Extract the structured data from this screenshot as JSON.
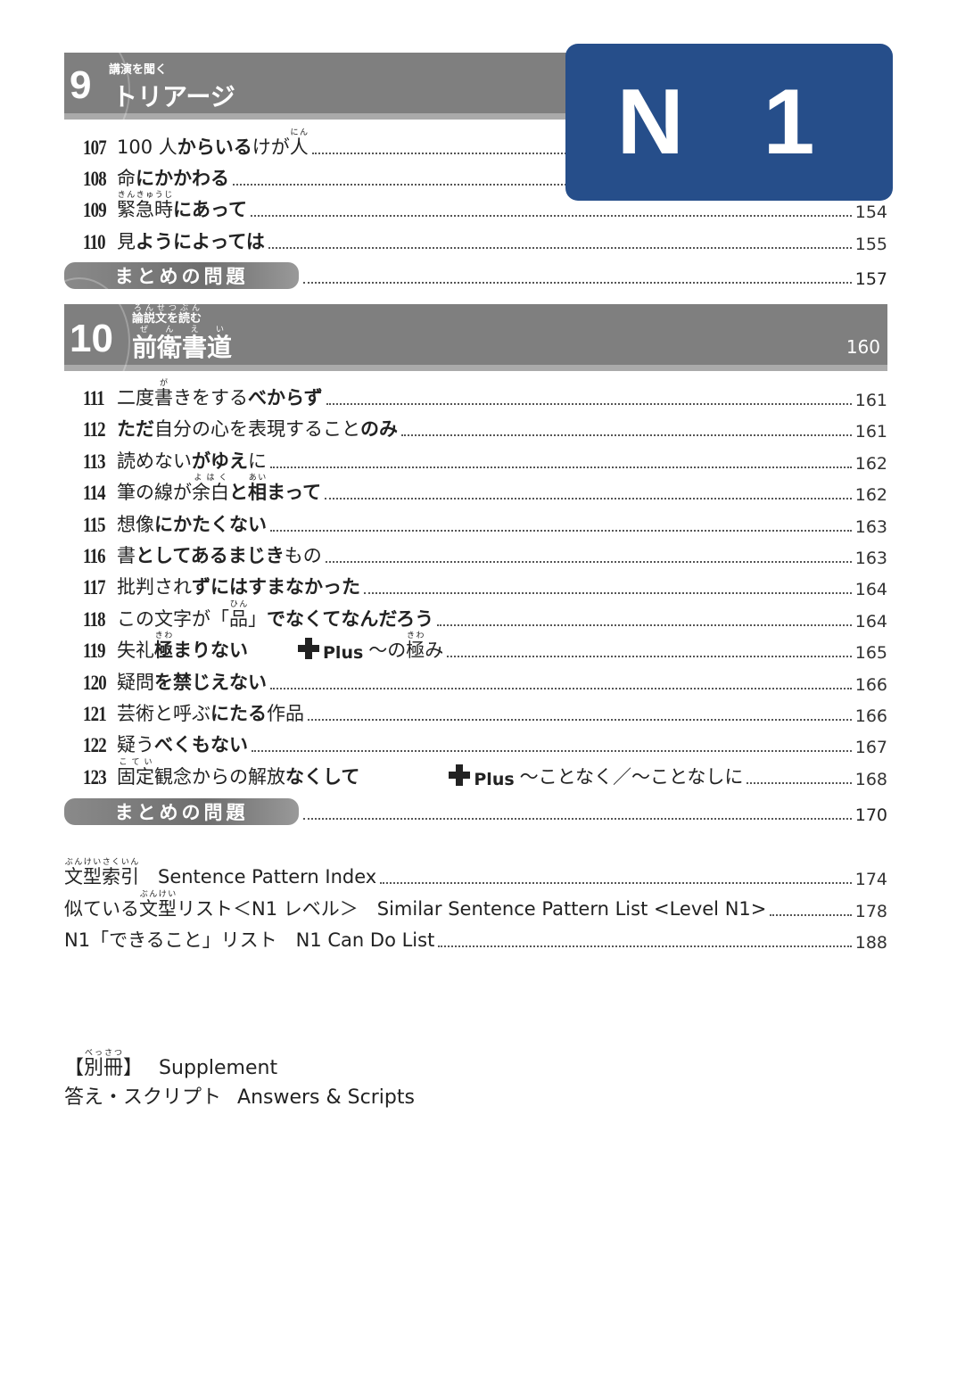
{
  "badge": {
    "label": "N 1",
    "color": "#264e8a"
  },
  "section9": {
    "number": "9",
    "subtitle": "講演を聞く",
    "title": "トリアージ",
    "items": [
      {
        "num": "107",
        "segs": [
          [
            "100 人",
            0
          ],
          [
            "からいる",
            1
          ],
          [
            "けが",
            0
          ],
          [
            "人",
            0,
            "にん"
          ]
        ],
        "page": ""
      },
      {
        "num": "108",
        "segs": [
          [
            "命",
            0
          ],
          [
            "にかかわる",
            1
          ]
        ],
        "page": ""
      },
      {
        "num": "109",
        "segs": [
          [
            "緊急時",
            0,
            "きんきゅうじ"
          ],
          [
            "にあって",
            1
          ]
        ],
        "page": "154"
      },
      {
        "num": "110",
        "segs": [
          [
            "見",
            0
          ],
          [
            "ようによっては",
            1
          ]
        ],
        "page": "155"
      }
    ],
    "summary": {
      "label": "まとめの問題",
      "page": "157"
    }
  },
  "section10": {
    "number": "10",
    "subtitle": "論説文を読む",
    "subtitle_ruby": "ろんせつぶん",
    "title": "前衛書道",
    "title_ruby": "ぜんえい",
    "page": "160",
    "items": [
      {
        "num": "111",
        "segs": [
          [
            "二度",
            0
          ],
          [
            "書",
            0,
            "が"
          ],
          [
            "きをする",
            0
          ],
          [
            "べからず",
            1
          ]
        ],
        "page": "161"
      },
      {
        "num": "112",
        "segs": [
          [
            "ただ",
            1
          ],
          [
            "自分の心を表現すること",
            0
          ],
          [
            "のみ",
            1
          ]
        ],
        "page": "161"
      },
      {
        "num": "113",
        "segs": [
          [
            "読めない",
            0
          ],
          [
            "がゆえ",
            1
          ],
          [
            "に",
            0
          ]
        ],
        "page": "162"
      },
      {
        "num": "114",
        "segs": [
          [
            "筆の線が",
            0
          ],
          [
            "余白",
            0,
            "よはく"
          ],
          [
            "と",
            1
          ],
          [
            "相",
            1,
            "あい"
          ],
          [
            "まって",
            1
          ]
        ],
        "page": "162"
      },
      {
        "num": "115",
        "segs": [
          [
            "想像",
            0
          ],
          [
            "にかたくない",
            1
          ]
        ],
        "page": "163"
      },
      {
        "num": "116",
        "segs": [
          [
            "書",
            0
          ],
          [
            "としてあるまじき",
            1
          ],
          [
            "もの",
            0
          ]
        ],
        "page": "163"
      },
      {
        "num": "117",
        "segs": [
          [
            "批判され",
            0
          ],
          [
            "ずにはすまなかった",
            1
          ]
        ],
        "page": "164"
      },
      {
        "num": "118",
        "segs": [
          [
            "この文字が「",
            0
          ],
          [
            "品",
            0,
            "ひん"
          ],
          [
            "」",
            0
          ],
          [
            "でなくてなんだろう",
            1
          ]
        ],
        "page": "164"
      },
      {
        "num": "119",
        "segs": [
          [
            "失礼",
            0
          ],
          [
            "極",
            1,
            "きわ"
          ],
          [
            "まりない",
            1
          ]
        ],
        "plus": {
          "label": "Plus",
          "segs": [
            [
              "～の",
              0
            ],
            [
              "極",
              0,
              "きわ"
            ],
            [
              "み",
              0
            ]
          ]
        },
        "page": "165"
      },
      {
        "num": "120",
        "segs": [
          [
            "疑問",
            0
          ],
          [
            "を禁じえない",
            1
          ]
        ],
        "page": "166"
      },
      {
        "num": "121",
        "segs": [
          [
            "芸術と呼ぶ",
            0
          ],
          [
            "にたる",
            1
          ],
          [
            "作品",
            0
          ]
        ],
        "page": "166"
      },
      {
        "num": "122",
        "segs": [
          [
            "疑う",
            0
          ],
          [
            "べくもない",
            1
          ]
        ],
        "page": "167"
      },
      {
        "num": "123",
        "segs": [
          [
            "固定",
            0,
            "こてい"
          ],
          [
            "観念からの解放",
            0
          ],
          [
            "なくして",
            1
          ]
        ],
        "plus": {
          "label": "Plus",
          "segs": [
            [
              "～ことなく／～ことなしに",
              0
            ]
          ]
        },
        "page": "168"
      }
    ],
    "summary": {
      "label": "まとめの問題",
      "page": "170"
    }
  },
  "index": [
    {
      "segs": [
        [
          "文型索引",
          0,
          "ぶんけいさくいん"
        ],
        [
          "　Sentence Pattern Index",
          0
        ]
      ],
      "page": "174"
    },
    {
      "segs": [
        [
          "似ている",
          0
        ],
        [
          "文型",
          0,
          "ぶんけい"
        ],
        [
          "リスト＜N1 レベル＞　Similar Sentence Pattern List <Level N1>",
          0
        ]
      ],
      "page": "178"
    },
    {
      "segs": [
        [
          "N1「できること」リスト　N1 Can Do List",
          0
        ]
      ],
      "page": "188"
    }
  ],
  "supplement": [
    {
      "segs": [
        [
          "【",
          0
        ],
        [
          "別冊",
          0,
          "べっさつ"
        ],
        [
          "】",
          0
        ]
      ],
      "en": "Supplement"
    },
    {
      "segs": [
        [
          "答え・スクリプト",
          0
        ]
      ],
      "en": "Answers & Scripts"
    }
  ]
}
